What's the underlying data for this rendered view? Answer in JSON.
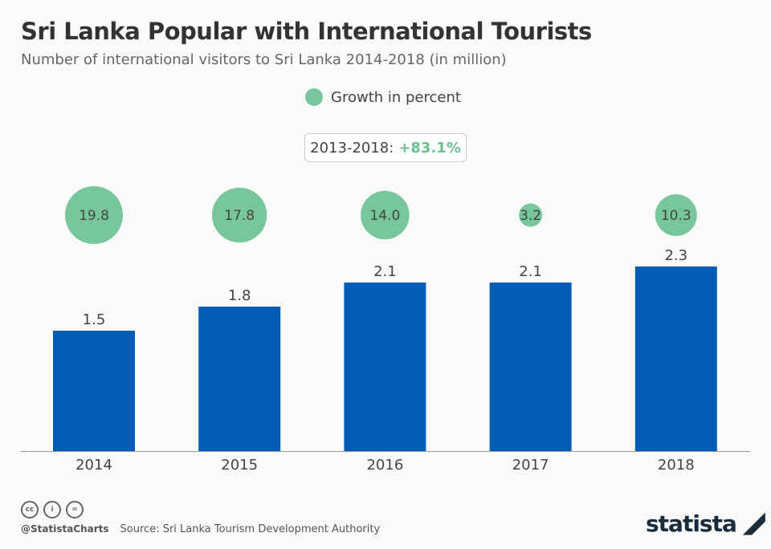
{
  "title": "Sri Lanka Popular with International Tourists",
  "subtitle": "Number of international visitors to Sri Lanka 2014-2018 (in million)",
  "legend": {
    "label": "Growth in percent",
    "color": "#78c79a"
  },
  "summary": {
    "label": "2013-2018:",
    "value": "+83.1%"
  },
  "chart_data": {
    "type": "bar",
    "categories": [
      "2014",
      "2015",
      "2016",
      "2017",
      "2018"
    ],
    "values": [
      1.5,
      1.8,
      2.1,
      2.1,
      2.3
    ],
    "value_labels": [
      "1.5",
      "1.8",
      "2.1",
      "2.1",
      "2.3"
    ],
    "growth_percent": [
      19.8,
      17.8,
      14.0,
      3.2,
      10.3
    ],
    "growth_labels": [
      "19.8",
      "17.8",
      "14.0",
      "3.2",
      "10.3"
    ],
    "bar_color": "#005cb4",
    "ylim": [
      0,
      2.5
    ]
  },
  "footer": {
    "handle": "@StatistaCharts",
    "source": "Source: Sri Lanka Tourism Development Authority",
    "cc_icons": [
      "cc",
      "i",
      "="
    ],
    "logo": "statista"
  }
}
